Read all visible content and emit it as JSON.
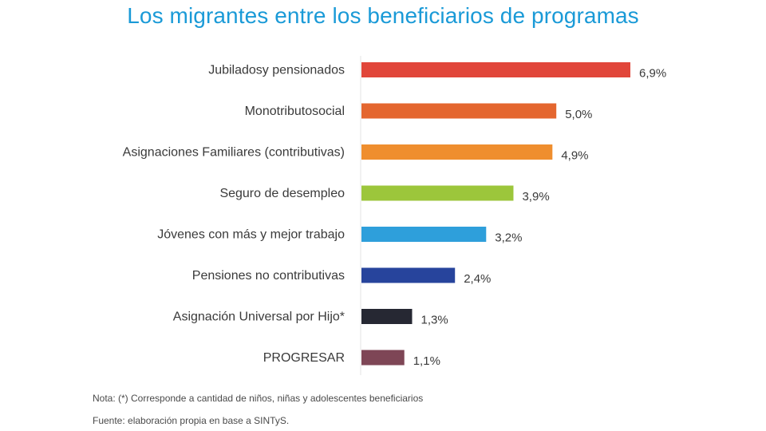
{
  "chart_data": {
    "type": "bar",
    "orientation": "horizontal",
    "title": "Los migrantes entre los beneficiarios de programas",
    "categories": [
      "Jubiladosy pensionados",
      "Monotributosocial",
      "Asignaciones Familiares (contributivas)",
      "Seguro de desempleo",
      "Jóvenes con más y mejor trabajo",
      "Pensiones no contributivas",
      "Asignación Universal por Hijo*",
      "PROGRESAR"
    ],
    "values": [
      6.9,
      5.0,
      4.9,
      3.9,
      3.2,
      2.4,
      1.3,
      1.1
    ],
    "value_labels": [
      "6,9%",
      "5,0%",
      "4,9%",
      "3,9%",
      "3,2%",
      "2,4%",
      "1,3%",
      "1,1%"
    ],
    "colors": [
      "#e1463a",
      "#e4662f",
      "#ef8e2e",
      "#9cc63b",
      "#2e9fdb",
      "#27449c",
      "#262833",
      "#7e4656"
    ],
    "unit": "%",
    "xlim": [
      0,
      7
    ],
    "grid": false,
    "legend": "none"
  },
  "notes": {
    "note": "Nota: (*) Corresponde a cantidad de niños, niñas y adolescentes beneficiarios",
    "source": "Fuente: elaboración propia en base a SINTyS."
  }
}
